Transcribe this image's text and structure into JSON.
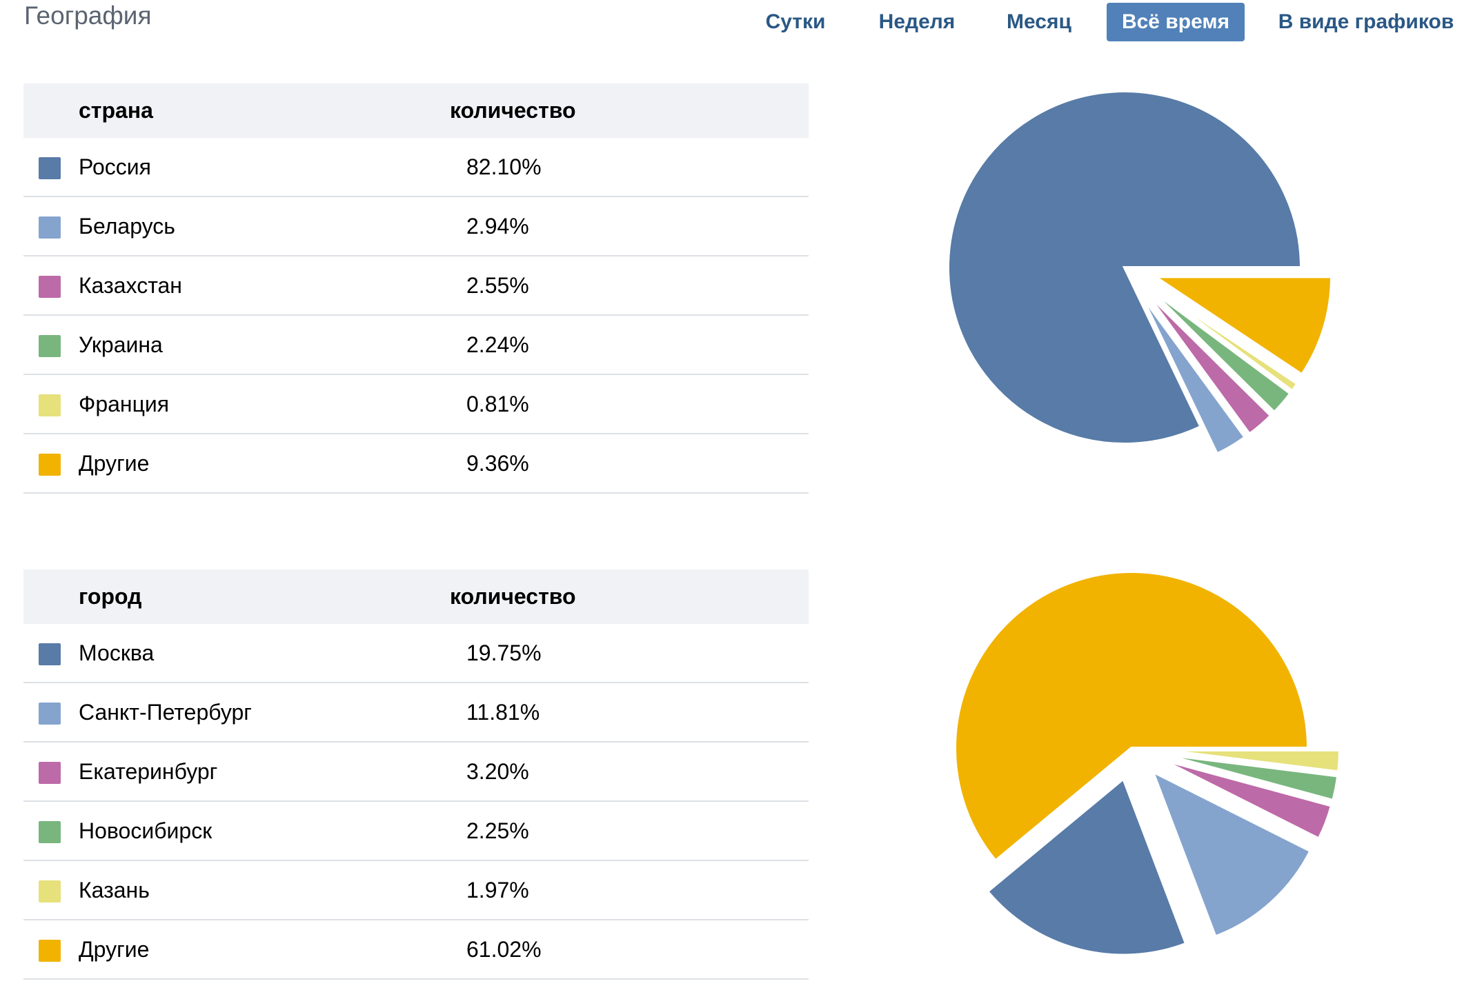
{
  "page": {
    "title": "География"
  },
  "periods": {
    "items": [
      {
        "label": "Сутки",
        "active": false
      },
      {
        "label": "Неделя",
        "active": false
      },
      {
        "label": "Месяц",
        "active": false
      },
      {
        "label": "Всё время",
        "active": true
      },
      {
        "label": "В виде графиков",
        "active": false
      }
    ]
  },
  "countries": {
    "headers": {
      "name": "страна",
      "value": "количество"
    },
    "rows": [
      {
        "name": "Россия",
        "value": "82.10%",
        "color": "#587ba7"
      },
      {
        "name": "Беларусь",
        "value": "2.94%",
        "color": "#84a4ce"
      },
      {
        "name": "Казахстан",
        "value": "2.55%",
        "color": "#bd6aa8"
      },
      {
        "name": "Украина",
        "value": "2.24%",
        "color": "#78b67d"
      },
      {
        "name": "Франция",
        "value": "0.81%",
        "color": "#e6e17b"
      },
      {
        "name": "Другие",
        "value": "9.36%",
        "color": "#f1b300"
      }
    ]
  },
  "cities": {
    "headers": {
      "name": "город",
      "value": "количество"
    },
    "rows": [
      {
        "name": "Москва",
        "value": "19.75%",
        "color": "#587ba7"
      },
      {
        "name": "Санкт-Петербург",
        "value": "11.81%",
        "color": "#84a4ce"
      },
      {
        "name": "Екатеринбург",
        "value": "3.20%",
        "color": "#bd6aa8"
      },
      {
        "name": "Новосибирск",
        "value": "2.25%",
        "color": "#78b67d"
      },
      {
        "name": "Казань",
        "value": "1.97%",
        "color": "#e6e17b"
      },
      {
        "name": "Другие",
        "value": "61.02%",
        "color": "#f1b300"
      }
    ]
  },
  "chart_data": [
    {
      "type": "pie",
      "categories": [
        "Россия",
        "Беларусь",
        "Казахстан",
        "Украина",
        "Франция",
        "Другие"
      ],
      "values": [
        82.1,
        2.94,
        2.55,
        2.24,
        0.81,
        9.36
      ],
      "colors": [
        "#587ba7",
        "#84a4ce",
        "#bd6aa8",
        "#78b67d",
        "#e6e17b",
        "#f1b300"
      ]
    },
    {
      "type": "pie",
      "categories": [
        "Москва",
        "Санкт-Петербург",
        "Екатеринбург",
        "Новосибирск",
        "Казань",
        "Другие"
      ],
      "values": [
        19.75,
        11.81,
        3.2,
        2.25,
        1.97,
        61.02
      ],
      "colors": [
        "#587ba7",
        "#84a4ce",
        "#bd6aa8",
        "#78b67d",
        "#e6e17b",
        "#f1b300"
      ]
    }
  ]
}
